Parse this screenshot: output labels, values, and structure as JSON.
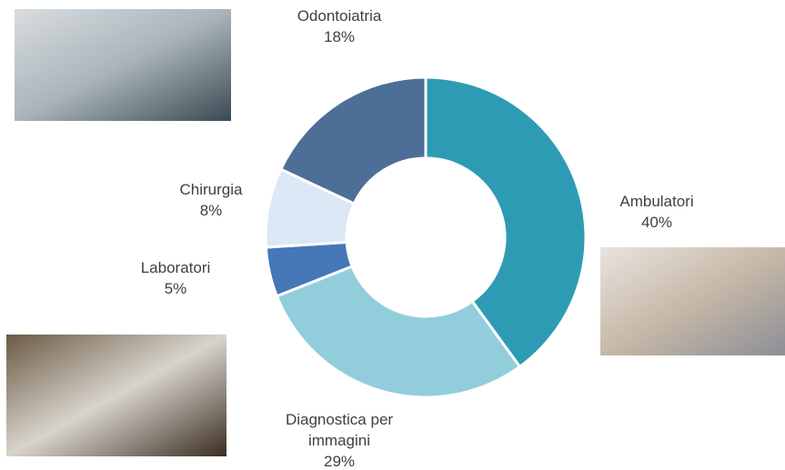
{
  "chart_data": {
    "type": "donut",
    "categories": [
      "Ambulatori",
      "Diagnostica per immagini",
      "Laboratori",
      "Chirurgia",
      "Odontoiatria"
    ],
    "values": [
      40,
      29,
      5,
      8,
      18
    ],
    "value_labels": [
      "40%",
      "29%",
      "5%",
      "8%",
      "18%"
    ],
    "colors": [
      "#2e9bb5",
      "#92cddc",
      "#4677b8",
      "#dbe8f5",
      "#4d6e96"
    ]
  }
}
